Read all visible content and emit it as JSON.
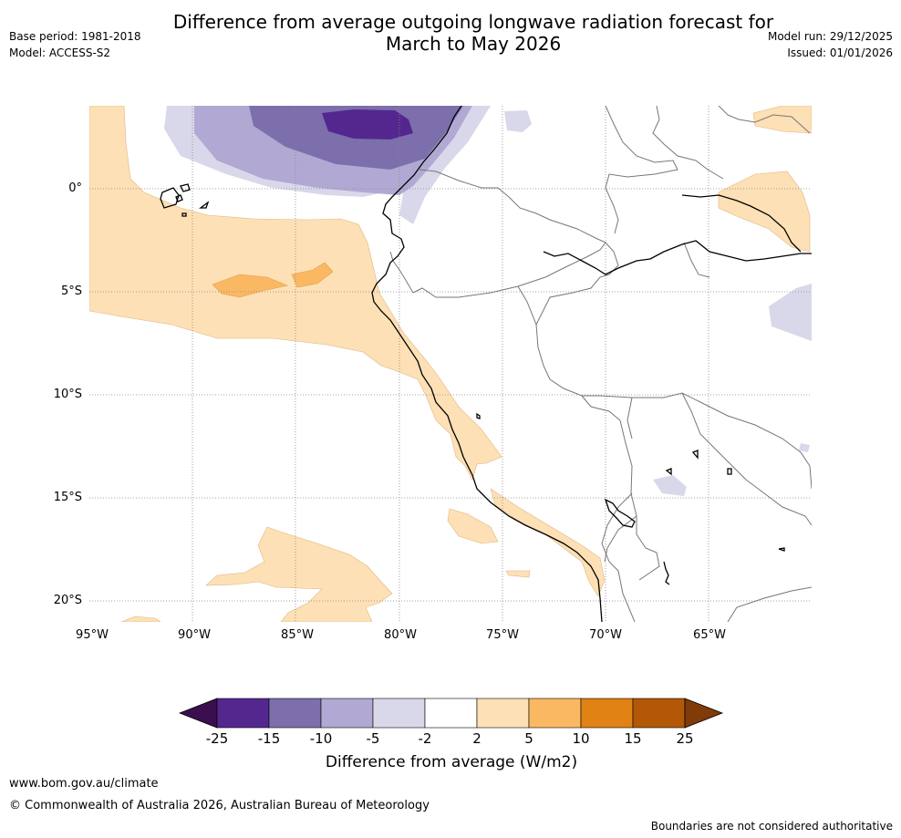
{
  "header": {
    "title_line1": "Difference from average outgoing longwave radiation forecast for",
    "title_line2": "March to May 2026",
    "base_period": "Base period: 1981-2018",
    "model": "Model: ACCESS-S2",
    "model_run": "Model run: 29/12/2025",
    "issued": "Issued: 01/01/2026"
  },
  "map": {
    "lat_labels": [
      "0°",
      "5°S",
      "10°S",
      "15°S",
      "20°S"
    ],
    "lon_labels": [
      "95°W",
      "90°W",
      "85°W",
      "80°W",
      "75°W",
      "70°W",
      "65°W"
    ]
  },
  "colorbar": {
    "ticks": [
      "-25",
      "-15",
      "-10",
      "-5",
      "-2",
      "2",
      "5",
      "10",
      "15",
      "25"
    ],
    "colors": [
      "#3b0f4f",
      "#54278f",
      "#7c6fab",
      "#b1a9d3",
      "#d9d8ea",
      "#ffffff",
      "#fde0b5",
      "#fbb862",
      "#e08214",
      "#b35806",
      "#7f3b08"
    ],
    "label": "Difference from average (W/m2)"
  },
  "footer": {
    "url": "www.bom.gov.au/climate",
    "copyright": "© Commonwealth of Australia 2026, Australian Bureau of Meteorology",
    "disclaimer": "Boundaries are not considered authoritative"
  }
}
